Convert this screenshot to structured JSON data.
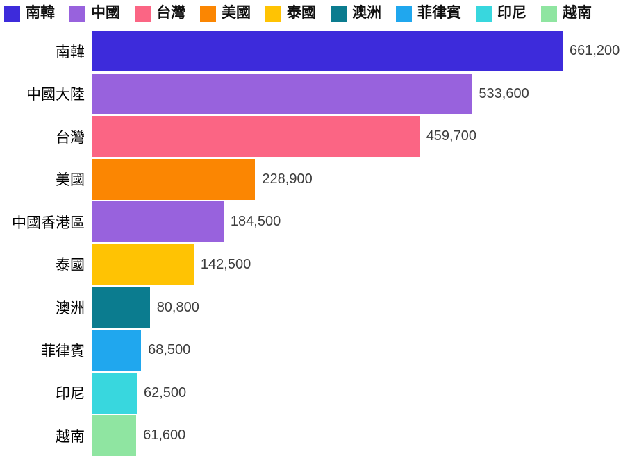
{
  "chart_data": {
    "type": "bar",
    "orientation": "horizontal",
    "grid": false,
    "categories": [
      "南韓",
      "中國大陸",
      "台灣",
      "美國",
      "中國香港區",
      "泰國",
      "澳洲",
      "菲律賓",
      "印尼",
      "越南"
    ],
    "values": [
      661200,
      533600,
      459700,
      228900,
      184500,
      142500,
      80800,
      68500,
      62500,
      61600
    ],
    "value_labels": [
      "661,200",
      "533,600",
      "459,700",
      "228,900",
      "184,500",
      "142,500",
      "80,800",
      "68,500",
      "62,500",
      "61,600"
    ],
    "bar_colors": [
      "#3d2bdb",
      "#9862dd",
      "#fb6584",
      "#fb8602",
      "#9862dd",
      "#ffc303",
      "#0b7c8f",
      "#20a7ee",
      "#38d7de",
      "#8fe5a1"
    ],
    "xlim": [
      0,
      661200
    ],
    "legend": {
      "position": "top",
      "entries": [
        {
          "label": "南韓",
          "color": "#3d2bdb"
        },
        {
          "label": "中國",
          "color": "#9862dd"
        },
        {
          "label": "台灣",
          "color": "#fb6584"
        },
        {
          "label": "美國",
          "color": "#fb8602"
        },
        {
          "label": "泰國",
          "color": "#ffc303"
        },
        {
          "label": "澳洲",
          "color": "#0b7c8f"
        },
        {
          "label": "菲律賓",
          "color": "#20a7ee"
        },
        {
          "label": "印尼",
          "color": "#38d7de"
        },
        {
          "label": "越南",
          "color": "#8fe5a1"
        }
      ]
    },
    "text_colors": {
      "legend_label": "#111111",
      "category_label": "#000000",
      "value_label": "#3d3d3d"
    }
  }
}
